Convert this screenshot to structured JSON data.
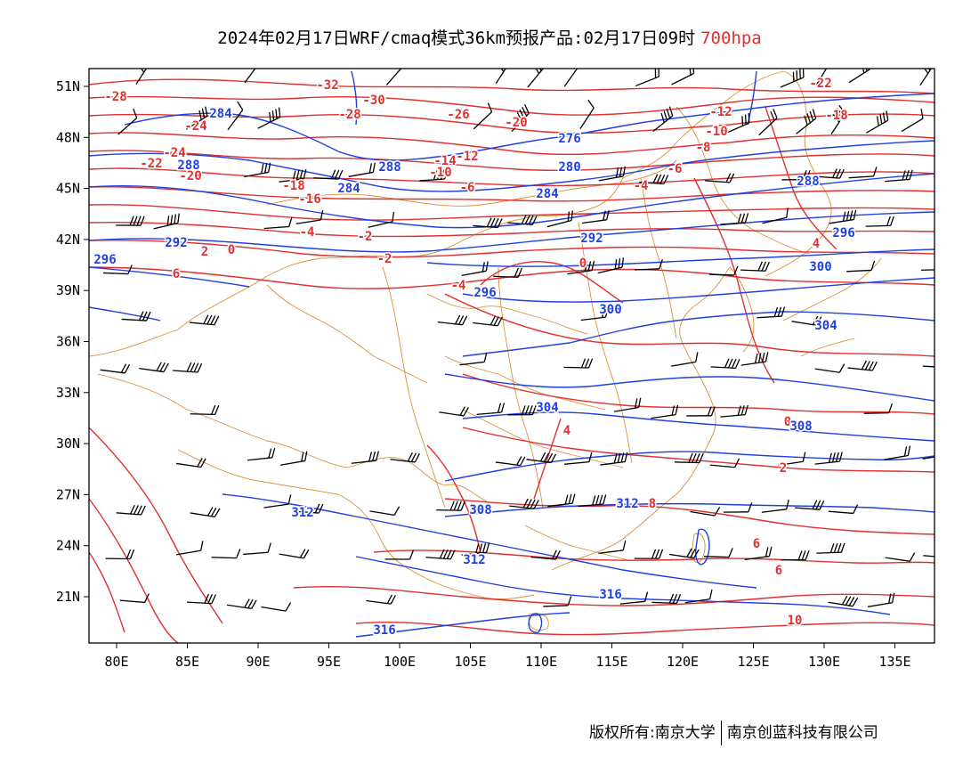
{
  "title": {
    "main": "2024年02月17日WRF/cmaq模式36km预报产品:02月17日09时",
    "level": "700hpa",
    "level_color": "#e03030"
  },
  "axes": {
    "lon_labels": [
      "80E",
      "85E",
      "90E",
      "95E",
      "100E",
      "105E",
      "110E",
      "115E",
      "120E",
      "125E",
      "130E",
      "135E"
    ],
    "lat_labels": [
      "51N",
      "48N",
      "45N",
      "42N",
      "39N",
      "36N",
      "33N",
      "30N",
      "27N",
      "24N",
      "21N"
    ]
  },
  "colors": {
    "temperature": "#e03030",
    "geopotential": "#2040e0",
    "boundary": "#d9913a",
    "wind": "#000000"
  },
  "temperature_labels": [
    "-32",
    "-30",
    "-28",
    "-28",
    "-26",
    "-24",
    "-24",
    "-22",
    "-22",
    "-20",
    "-20",
    "-18",
    "-18",
    "-16",
    "-14",
    "-12",
    "-12",
    "-10",
    "-10",
    "-8",
    "-6",
    "-6",
    "-4",
    "-4",
    "-4",
    "-2",
    "-2",
    "0",
    "0",
    "0",
    "2",
    "2",
    "4",
    "4",
    "6",
    "6",
    "6",
    "8",
    "10"
  ],
  "height_labels": [
    "284",
    "276",
    "288",
    "280",
    "284",
    "284",
    "288",
    "288",
    "292",
    "292",
    "296",
    "296",
    "296",
    "300",
    "300",
    "304",
    "304",
    "308",
    "308",
    "312",
    "312",
    "312",
    "316",
    "316"
  ],
  "footer": {
    "copyright": "版权所有:南京大学",
    "company": "南京创蓝科技有限公司"
  }
}
